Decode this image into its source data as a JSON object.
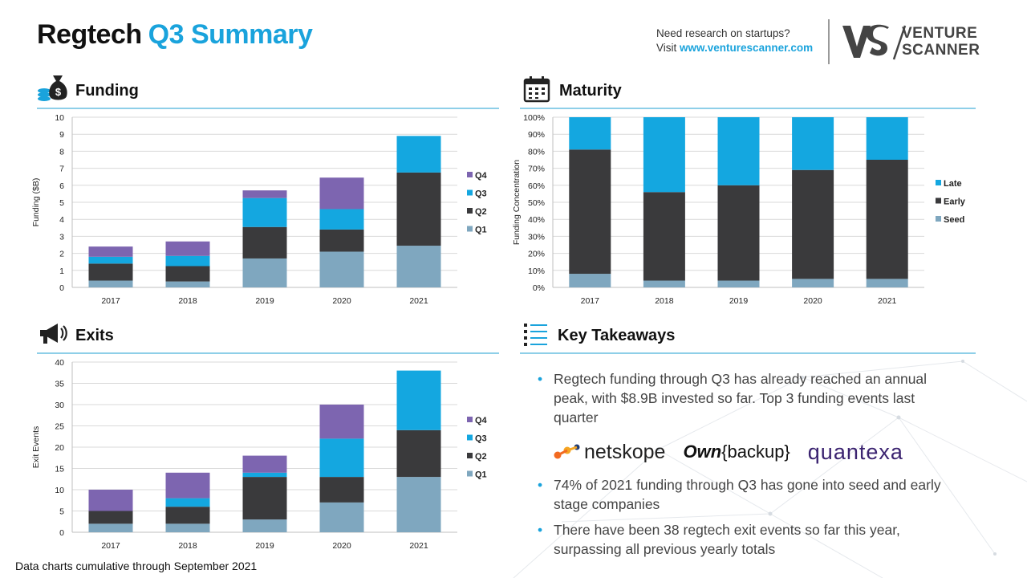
{
  "header": {
    "title_main": "Regtech",
    "title_accent": "Q3 Summary",
    "research_line1": "Need research on startups?",
    "research_visit": "Visit",
    "research_url": "www.venturescanner.com",
    "logo_line1": "VENTURE",
    "logo_line2": "SCANNER"
  },
  "sections": {
    "funding": "Funding",
    "maturity": "Maturity",
    "exits": "Exits",
    "takeaways": "Key Takeaways"
  },
  "colors": {
    "q1_seed": "#7fa7bf",
    "q2_early": "#3a3a3c",
    "q3_late": "#14a7e0",
    "q4": "#7d65b0",
    "accent": "#1aa3dc"
  },
  "chart_data": [
    {
      "id": "funding",
      "type": "bar",
      "stacked": true,
      "categories": [
        "2017",
        "2018",
        "2019",
        "2020",
        "2021"
      ],
      "ylabel": "Funding ($B)",
      "ylim": [
        0,
        10
      ],
      "yticks": [
        "0",
        "1",
        "2",
        "3",
        "4",
        "5",
        "6",
        "7",
        "8",
        "9",
        "10"
      ],
      "grid": true,
      "legend": "right",
      "series": [
        {
          "name": "Q1",
          "values": [
            0.4,
            0.35,
            1.7,
            2.1,
            2.45
          ]
        },
        {
          "name": "Q2",
          "values": [
            1.0,
            0.9,
            1.85,
            1.3,
            4.3
          ]
        },
        {
          "name": "Q3",
          "values": [
            0.4,
            0.6,
            1.7,
            1.2,
            2.15
          ]
        },
        {
          "name": "Q4",
          "values": [
            0.6,
            0.85,
            0.45,
            1.85,
            0
          ]
        }
      ]
    },
    {
      "id": "maturity",
      "type": "bar",
      "stacked": true,
      "categories": [
        "2017",
        "2018",
        "2019",
        "2020",
        "2021"
      ],
      "ylabel": "Funding Concentration",
      "ylim": [
        0,
        100
      ],
      "yticks": [
        "0%",
        "10%",
        "20%",
        "30%",
        "40%",
        "50%",
        "60%",
        "70%",
        "80%",
        "90%",
        "100%"
      ],
      "grid": true,
      "legend": "right",
      "series": [
        {
          "name": "Seed",
          "values": [
            8,
            4,
            4,
            5,
            5
          ]
        },
        {
          "name": "Early",
          "values": [
            73,
            52,
            56,
            64,
            70
          ]
        },
        {
          "name": "Late",
          "values": [
            19,
            44,
            40,
            31,
            25
          ]
        }
      ]
    },
    {
      "id": "exits",
      "type": "bar",
      "stacked": true,
      "categories": [
        "2017",
        "2018",
        "2019",
        "2020",
        "2021"
      ],
      "ylabel": "Exit Events",
      "ylim": [
        0,
        40
      ],
      "yticks": [
        "0",
        "5",
        "10",
        "15",
        "20",
        "25",
        "30",
        "35",
        "40"
      ],
      "grid": true,
      "legend": "right",
      "series": [
        {
          "name": "Q1",
          "values": [
            2,
            2,
            3,
            7,
            13
          ]
        },
        {
          "name": "Q2",
          "values": [
            3,
            4,
            10,
            6,
            11
          ]
        },
        {
          "name": "Q3",
          "values": [
            0,
            2,
            1,
            9,
            14
          ]
        },
        {
          "name": "Q4",
          "values": [
            5,
            6,
            4,
            8,
            0
          ]
        }
      ]
    }
  ],
  "takeaways": {
    "item1": "Regtech funding through Q3 has already reached an annual peak, with $8.9B invested so far. Top 3 funding events last quarter",
    "logo_netskope": "netskope",
    "logo_own": "Own",
    "logo_backup": "{backup}",
    "logo_quantexa": "quantexa",
    "item2": "74% of 2021 funding through Q3 has gone into seed and early stage companies",
    "item3": "There have been 38 regtech exit events so far this year, surpassing all previous yearly totals"
  },
  "footnote": "Data charts cumulative through September 2021"
}
